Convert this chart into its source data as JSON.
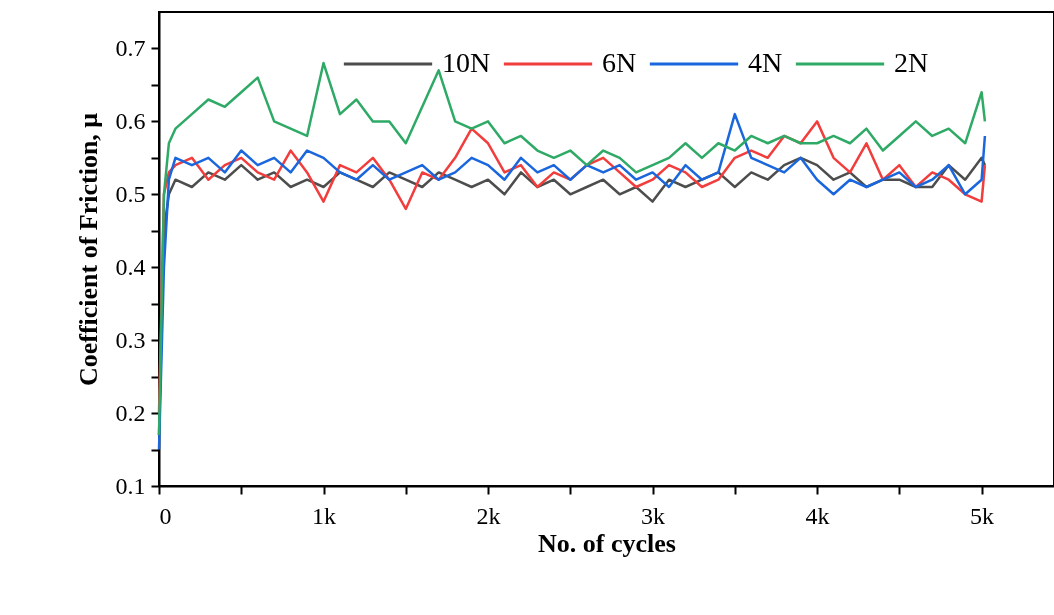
{
  "chart_data": {
    "type": "line",
    "xlabel": "No. of cycles",
    "ylabel": "Coefficient of Friction, μ",
    "x": [
      0,
      30,
      60,
      100,
      200,
      300,
      400,
      500,
      600,
      700,
      800,
      900,
      1000,
      1100,
      1200,
      1300,
      1400,
      1500,
      1600,
      1700,
      1800,
      1900,
      2000,
      2100,
      2200,
      2300,
      2400,
      2500,
      2600,
      2700,
      2800,
      2900,
      3000,
      3100,
      3200,
      3300,
      3400,
      3500,
      3600,
      3700,
      3800,
      3900,
      4000,
      4100,
      4200,
      4300,
      4400,
      4500,
      4600,
      4700,
      4800,
      4900,
      5000,
      5020
    ],
    "series": [
      {
        "name": "10N",
        "color": "#4d4d4d",
        "values": [
          0.17,
          0.45,
          0.5,
          0.52,
          0.51,
          0.53,
          0.52,
          0.54,
          0.52,
          0.53,
          0.51,
          0.52,
          0.51,
          0.53,
          0.52,
          0.51,
          0.53,
          0.52,
          0.51,
          0.53,
          0.52,
          0.51,
          0.52,
          0.5,
          0.53,
          0.51,
          0.52,
          0.5,
          0.51,
          0.52,
          0.5,
          0.51,
          0.49,
          0.52,
          0.51,
          0.52,
          0.53,
          0.51,
          0.53,
          0.52,
          0.54,
          0.55,
          0.54,
          0.52,
          0.53,
          0.51,
          0.52,
          0.52,
          0.51,
          0.51,
          0.54,
          0.52,
          0.55,
          0.54
        ]
      },
      {
        "name": "6N",
        "color": "#f23d3d",
        "values": [
          0.2,
          0.5,
          0.53,
          0.54,
          0.55,
          0.52,
          0.54,
          0.55,
          0.53,
          0.52,
          0.56,
          0.53,
          0.49,
          0.54,
          0.53,
          0.55,
          0.52,
          0.48,
          0.53,
          0.52,
          0.55,
          0.59,
          0.57,
          0.53,
          0.54,
          0.51,
          0.53,
          0.52,
          0.54,
          0.55,
          0.53,
          0.51,
          0.52,
          0.54,
          0.53,
          0.51,
          0.52,
          0.55,
          0.56,
          0.55,
          0.58,
          0.57,
          0.6,
          0.55,
          0.53,
          0.57,
          0.52,
          0.54,
          0.51,
          0.53,
          0.52,
          0.5,
          0.49,
          0.54
        ]
      },
      {
        "name": "4N",
        "color": "#1a66dd",
        "values": [
          0.15,
          0.4,
          0.52,
          0.55,
          0.54,
          0.55,
          0.53,
          0.56,
          0.54,
          0.55,
          0.53,
          0.56,
          0.55,
          0.53,
          0.52,
          0.54,
          0.52,
          0.53,
          0.54,
          0.52,
          0.53,
          0.55,
          0.54,
          0.52,
          0.55,
          0.53,
          0.54,
          0.52,
          0.54,
          0.53,
          0.54,
          0.52,
          0.53,
          0.51,
          0.54,
          0.52,
          0.53,
          0.61,
          0.55,
          0.54,
          0.53,
          0.55,
          0.52,
          0.5,
          0.52,
          0.51,
          0.52,
          0.53,
          0.51,
          0.52,
          0.54,
          0.5,
          0.52,
          0.58
        ]
      },
      {
        "name": "2N",
        "color": "#2eaa66",
        "values": [
          0.17,
          0.5,
          0.57,
          0.59,
          0.61,
          0.63,
          0.62,
          0.64,
          0.66,
          0.6,
          0.59,
          0.58,
          0.68,
          0.61,
          0.63,
          0.6,
          0.6,
          0.57,
          0.62,
          0.67,
          0.6,
          0.59,
          0.6,
          0.57,
          0.58,
          0.56,
          0.55,
          0.56,
          0.54,
          0.56,
          0.55,
          0.53,
          0.54,
          0.55,
          0.57,
          0.55,
          0.57,
          0.56,
          0.58,
          0.57,
          0.58,
          0.57,
          0.57,
          0.58,
          0.57,
          0.59,
          0.56,
          0.58,
          0.6,
          0.58,
          0.59,
          0.57,
          0.64,
          0.6
        ]
      }
    ],
    "xlim": [
      0,
      5440
    ],
    "xticks": [
      0,
      {
        "value": 500,
        "label": null
      },
      {
        "value": 1000,
        "label": "1k"
      },
      {
        "value": 1500,
        "label": null
      },
      {
        "value": 2000,
        "label": "2k"
      },
      {
        "value": 2500,
        "label": null
      },
      {
        "value": 3000,
        "label": "3k"
      },
      {
        "value": 3500,
        "label": null
      },
      {
        "value": 4000,
        "label": "4k"
      },
      {
        "value": 4500,
        "label": null
      },
      {
        "value": 5000,
        "label": "5k"
      }
    ],
    "ylim": [
      0.1,
      0.75
    ],
    "yticks": [
      0.1,
      {
        "value": 0.15,
        "label": null
      },
      0.2,
      {
        "value": 0.25,
        "label": null
      },
      0.3,
      {
        "value": 0.35,
        "label": null
      },
      0.4,
      {
        "value": 0.45,
        "label": null
      },
      0.5,
      {
        "value": 0.55,
        "label": null
      },
      0.6,
      {
        "value": 0.65,
        "label": null
      },
      0.7
    ],
    "legend": "top right",
    "grid": false,
    "marker": "none",
    "line_style": "solid"
  }
}
